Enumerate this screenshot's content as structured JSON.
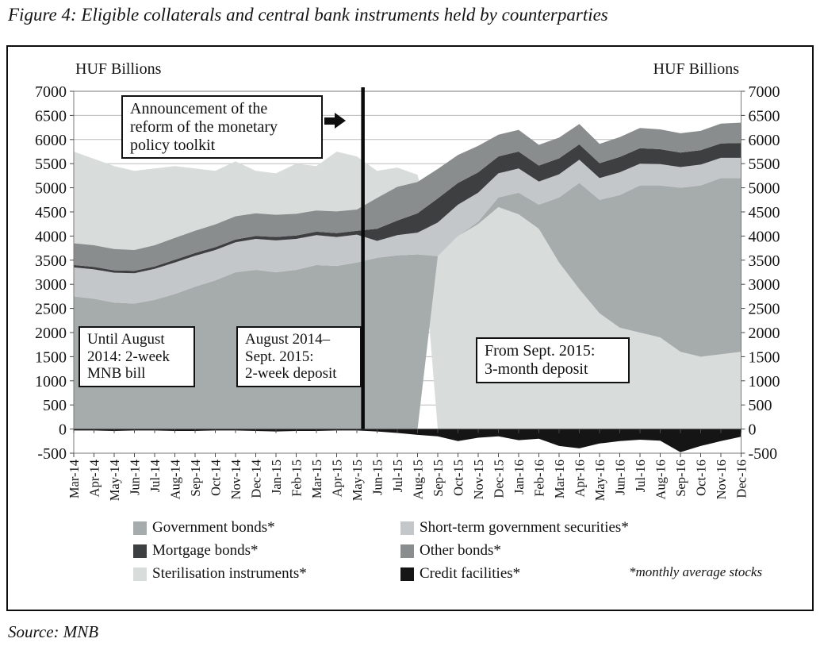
{
  "figure_title": "Figure 4: Eligible collaterals and central bank instruments held by counterparties",
  "source_note": "Source: MNB",
  "axis_titles": {
    "left": "HUF Billions",
    "right": "HUF Billions"
  },
  "annotations": {
    "announcement_lines": [
      "Announcement of the",
      "reform of the monetary",
      "policy toolkit"
    ],
    "box1_lines": [
      "Until August",
      "2014: 2-week",
      "MNB bill"
    ],
    "box2_lines": [
      "August 2014–",
      "Sept. 2015:",
      "2-week deposit"
    ],
    "box3_lines": [
      "From Sept. 2015:",
      "3-month deposit"
    ],
    "footnote": "*monthly average stocks"
  },
  "legend": [
    {
      "key": "gov",
      "label": "Government bonds*",
      "color": "#a6acac"
    },
    {
      "key": "short",
      "label": "Short-term government securities*",
      "color": "#c4c7c9"
    },
    {
      "key": "mort",
      "label": "Mortgage bonds*",
      "color": "#3d3f40"
    },
    {
      "key": "other",
      "label": "Other bonds*",
      "color": "#8a8d8d"
    },
    {
      "key": "ster",
      "label": "Sterilisation instruments*",
      "color": "#d8dcda"
    },
    {
      "key": "credit",
      "label": "Credit facilities*",
      "color": "#151515"
    }
  ],
  "chart_data": {
    "type": "area",
    "stacked": true,
    "title": "Eligible collaterals and central bank instruments held by counterparties",
    "ylabel": "HUF Billions",
    "ylim": [
      -500,
      7000
    ],
    "grid": true,
    "legend_position": "bottom",
    "y_ticks": [
      7000,
      6500,
      6000,
      5500,
      5000,
      4500,
      4000,
      3500,
      3000,
      2500,
      2000,
      1500,
      1000,
      500,
      0,
      -500
    ],
    "x": [
      "Mar-14",
      "Apr-14",
      "May-14",
      "Jun-14",
      "Jul-14",
      "Aug-14",
      "Sep-14",
      "Oct-14",
      "Nov-14",
      "Dec-14",
      "Jan-15",
      "Feb-15",
      "Mar-15",
      "Apr-15",
      "May-15",
      "Jun-15",
      "Jul-15",
      "Aug-15",
      "Sep-15",
      "Oct-15",
      "Nov-15",
      "Dec-15",
      "Jan-16",
      "Feb-16",
      "Mar-16",
      "Apr-16",
      "May-16",
      "Jun-16",
      "Jul-16",
      "Aug-16",
      "Sep-16",
      "Oct-16",
      "Nov-16",
      "Dec-16"
    ],
    "vline_between": [
      "May-15",
      "Jun-15"
    ],
    "vline_month_index": 14.3,
    "stack_order_until_aug15": [
      "gov",
      "short",
      "mort",
      "other",
      "ster"
    ],
    "stack_order_from_sep15": [
      "ster",
      "gov",
      "short",
      "mort",
      "other"
    ],
    "reorder_from_index": 18,
    "series": [
      {
        "key": "gov",
        "name": "Government bonds*",
        "color": "#a6acac",
        "values": [
          2750,
          2700,
          2620,
          2600,
          2680,
          2800,
          2950,
          3080,
          3250,
          3300,
          3250,
          3300,
          3400,
          3380,
          3450,
          3550,
          3600,
          3620,
          0,
          0,
          50,
          200,
          450,
          500,
          1350,
          2200,
          2350,
          2750,
          3050,
          3150,
          3400,
          3550,
          3650,
          3600
        ]
      },
      {
        "key": "short",
        "name": "Short-term government securities*",
        "color": "#c4c7c9",
        "values": [
          600,
          610,
          620,
          630,
          640,
          650,
          640,
          630,
          620,
          640,
          660,
          640,
          620,
          600,
          580,
          350,
          420,
          450,
          700,
          650,
          600,
          500,
          500,
          480,
          480,
          480,
          450,
          470,
          450,
          440,
          430,
          430,
          420,
          420
        ]
      },
      {
        "key": "mort",
        "name": "Mortgage bonds*",
        "color": "#3d3f40",
        "values": [
          50,
          50,
          50,
          50,
          50,
          60,
          60,
          60,
          60,
          60,
          70,
          70,
          70,
          80,
          80,
          250,
          300,
          400,
          500,
          450,
          420,
          350,
          350,
          330,
          330,
          320,
          310,
          320,
          320,
          310,
          300,
          300,
          300,
          310
        ]
      },
      {
        "key": "other",
        "name": "Other bonds*",
        "color": "#8a8d8d",
        "values": [
          450,
          450,
          440,
          430,
          440,
          450,
          460,
          470,
          480,
          470,
          460,
          450,
          440,
          450,
          440,
          640,
          700,
          650,
          610,
          580,
          550,
          450,
          450,
          430,
          430,
          420,
          400,
          410,
          420,
          410,
          400,
          400,
          410,
          420
        ]
      },
      {
        "key": "ster",
        "name": "Sterilisation instruments*",
        "color": "#d8dcda",
        "values": [
          1900,
          1790,
          1720,
          1640,
          1590,
          1490,
          1290,
          1110,
          1140,
          880,
          860,
          1040,
          920,
          1240,
          1100,
          560,
          400,
          150,
          3580,
          4000,
          4250,
          4600,
          4450,
          4150,
          3450,
          2900,
          2400,
          2100,
          2000,
          1900,
          1600,
          1500,
          1550,
          1600
        ]
      },
      {
        "key": "credit",
        "name": "Credit facilities*",
        "color": "#151515",
        "values": [
          -30,
          -30,
          -40,
          -30,
          -30,
          -40,
          -40,
          -30,
          -30,
          -40,
          -50,
          -40,
          -40,
          -30,
          -30,
          -50,
          -80,
          -120,
          -150,
          -250,
          -180,
          -150,
          -230,
          -200,
          -350,
          -400,
          -300,
          -250,
          -220,
          -240,
          -480,
          -350,
          -250,
          -160
        ]
      }
    ]
  }
}
